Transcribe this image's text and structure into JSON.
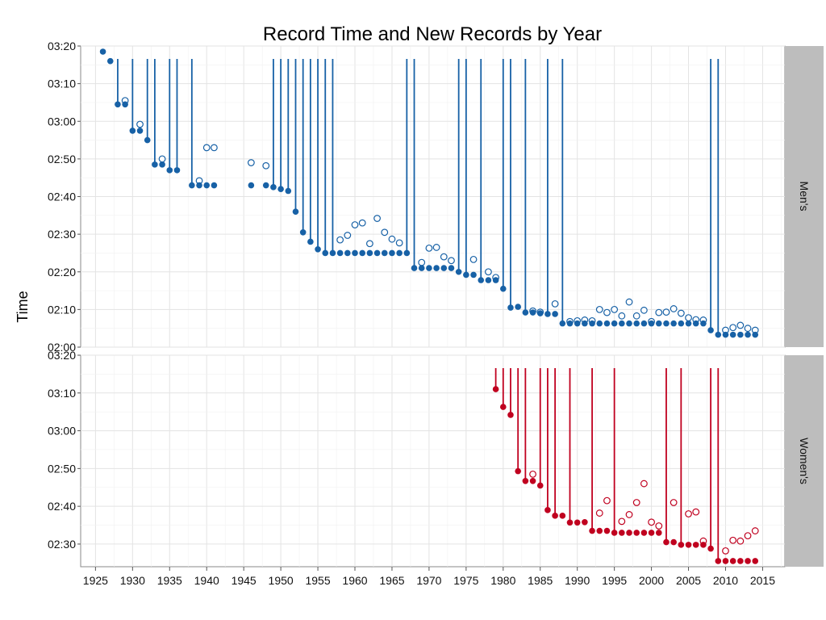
{
  "chart_data": {
    "type": "scatter",
    "title": "Record Time and New Records by Year",
    "xlabel": "",
    "ylabel": "Time",
    "xlim": [
      1923,
      2018
    ],
    "x_ticks": [
      1925,
      1930,
      1935,
      1940,
      1945,
      1950,
      1955,
      1960,
      1965,
      1970,
      1975,
      1980,
      1985,
      1990,
      1995,
      2000,
      2005,
      2010,
      2015
    ],
    "grid": true,
    "legend": "none",
    "facets": [
      {
        "label": "Men's",
        "color": "#1761a6",
        "ylim_minutes": [
          120,
          200
        ],
        "y_ticks": [
          "02:00",
          "02:10",
          "02:20",
          "02:30",
          "02:40",
          "02:50",
          "03:00",
          "03:10",
          "03:20"
        ],
        "record_time": [
          [
            1926,
            198.5
          ],
          [
            1927,
            196.0
          ],
          [
            1928,
            184.5
          ],
          [
            1929,
            184.5
          ],
          [
            1930,
            177.5
          ],
          [
            1931,
            177.5
          ],
          [
            1932,
            175.0
          ],
          [
            1933,
            168.5
          ],
          [
            1934,
            168.5
          ],
          [
            1935,
            167.0
          ],
          [
            1936,
            167.0
          ],
          [
            1938,
            163.0
          ],
          [
            1939,
            163.0
          ],
          [
            1940,
            163.0
          ],
          [
            1941,
            163.0
          ],
          [
            1946,
            163.0
          ],
          [
            1948,
            163.0
          ],
          [
            1949,
            162.5
          ],
          [
            1950,
            162.0
          ],
          [
            1951,
            161.5
          ],
          [
            1952,
            156.0
          ],
          [
            1953,
            150.5
          ],
          [
            1954,
            148.0
          ],
          [
            1955,
            146.0
          ],
          [
            1956,
            145.0
          ],
          [
            1957,
            145.0
          ],
          [
            1958,
            145.0
          ],
          [
            1959,
            145.0
          ],
          [
            1960,
            145.0
          ],
          [
            1961,
            145.0
          ],
          [
            1962,
            145.0
          ],
          [
            1963,
            145.0
          ],
          [
            1964,
            145.0
          ],
          [
            1965,
            145.0
          ],
          [
            1966,
            145.0
          ],
          [
            1967,
            145.0
          ],
          [
            1968,
            141.0
          ],
          [
            1969,
            141.0
          ],
          [
            1970,
            141.0
          ],
          [
            1971,
            141.0
          ],
          [
            1972,
            141.0
          ],
          [
            1973,
            141.0
          ],
          [
            1974,
            140.0
          ],
          [
            1975,
            139.2
          ],
          [
            1976,
            139.2
          ],
          [
            1977,
            137.8
          ],
          [
            1978,
            137.8
          ],
          [
            1979,
            137.8
          ],
          [
            1980,
            135.5
          ],
          [
            1981,
            130.5
          ],
          [
            1982,
            130.7
          ],
          [
            1983,
            129.2
          ],
          [
            1984,
            129.2
          ],
          [
            1985,
            129.0
          ],
          [
            1986,
            128.8
          ],
          [
            1987,
            128.8
          ],
          [
            1988,
            126.3
          ],
          [
            1989,
            126.3
          ],
          [
            1990,
            126.3
          ],
          [
            1991,
            126.3
          ],
          [
            1992,
            126.3
          ],
          [
            1993,
            126.3
          ],
          [
            1994,
            126.3
          ],
          [
            1995,
            126.3
          ],
          [
            1996,
            126.3
          ],
          [
            1997,
            126.3
          ],
          [
            1998,
            126.3
          ],
          [
            1999,
            126.3
          ],
          [
            2000,
            126.3
          ],
          [
            2001,
            126.3
          ],
          [
            2002,
            126.3
          ],
          [
            2003,
            126.3
          ],
          [
            2004,
            126.3
          ],
          [
            2005,
            126.3
          ],
          [
            2006,
            126.3
          ],
          [
            2007,
            126.3
          ],
          [
            2008,
            124.5
          ],
          [
            2009,
            123.3
          ],
          [
            2010,
            123.3
          ],
          [
            2011,
            123.3
          ],
          [
            2012,
            123.3
          ],
          [
            2013,
            123.3
          ],
          [
            2014,
            123.3
          ]
        ],
        "winning_time": [
          [
            1929,
            185.5
          ],
          [
            1931,
            179.2
          ],
          [
            1934,
            170.0
          ],
          [
            1939,
            164.2
          ],
          [
            1940,
            173.0
          ],
          [
            1941,
            173.0
          ],
          [
            1946,
            169.0
          ],
          [
            1948,
            168.2
          ],
          [
            1958,
            148.5
          ],
          [
            1959,
            149.7
          ],
          [
            1960,
            152.5
          ],
          [
            1961,
            153.0
          ],
          [
            1962,
            147.5
          ],
          [
            1963,
            154.2
          ],
          [
            1964,
            150.5
          ],
          [
            1965,
            148.7
          ],
          [
            1966,
            147.7
          ],
          [
            1969,
            142.5
          ],
          [
            1970,
            146.3
          ],
          [
            1971,
            146.5
          ],
          [
            1972,
            144.0
          ],
          [
            1973,
            143.0
          ],
          [
            1976,
            143.3
          ],
          [
            1978,
            140.0
          ],
          [
            1979,
            138.5
          ],
          [
            1984,
            129.6
          ],
          [
            1985,
            129.3
          ],
          [
            1987,
            131.5
          ],
          [
            1989,
            126.8
          ],
          [
            1990,
            127.0
          ],
          [
            1991,
            127.2
          ],
          [
            1992,
            127.0
          ],
          [
            1993,
            130.0
          ],
          [
            1994,
            129.2
          ],
          [
            1995,
            130.0
          ],
          [
            1996,
            128.3
          ],
          [
            1997,
            132.0
          ],
          [
            1998,
            128.3
          ],
          [
            1999,
            129.8
          ],
          [
            2000,
            126.8
          ],
          [
            2001,
            129.2
          ],
          [
            2002,
            129.3
          ],
          [
            2003,
            130.2
          ],
          [
            2004,
            129.0
          ],
          [
            2005,
            127.8
          ],
          [
            2006,
            127.3
          ],
          [
            2007,
            127.2
          ],
          [
            2010,
            124.5
          ],
          [
            2011,
            125.2
          ],
          [
            2012,
            125.8
          ],
          [
            2013,
            125.0
          ],
          [
            2014,
            124.5
          ]
        ],
        "new_record_years": [
          1927,
          1928,
          1930,
          1932,
          1933,
          1935,
          1936,
          1938,
          1949,
          1950,
          1951,
          1952,
          1953,
          1954,
          1955,
          1956,
          1957,
          1967,
          1968,
          1974,
          1975,
          1977,
          1980,
          1981,
          1983,
          1986,
          1988,
          2008,
          2009
        ]
      },
      {
        "label": "Women's",
        "color": "#c0001f",
        "ylim_minutes": [
          144,
          200
        ],
        "y_ticks": [
          "02:30",
          "02:40",
          "02:50",
          "03:00",
          "03:10",
          "03:20"
        ],
        "record_time": [
          [
            1979,
            191.0
          ],
          [
            1980,
            186.3
          ],
          [
            1981,
            184.2
          ],
          [
            1982,
            169.3
          ],
          [
            1983,
            166.7
          ],
          [
            1984,
            166.7
          ],
          [
            1985,
            165.5
          ],
          [
            1986,
            159.0
          ],
          [
            1987,
            157.5
          ],
          [
            1988,
            157.5
          ],
          [
            1989,
            155.7
          ],
          [
            1990,
            155.7
          ],
          [
            1991,
            155.8
          ],
          [
            1992,
            153.5
          ],
          [
            1993,
            153.5
          ],
          [
            1994,
            153.5
          ],
          [
            1995,
            153.0
          ],
          [
            1996,
            153.0
          ],
          [
            1997,
            153.0
          ],
          [
            1998,
            153.0
          ],
          [
            1999,
            153.0
          ],
          [
            2000,
            153.0
          ],
          [
            2001,
            153.0
          ],
          [
            2002,
            150.5
          ],
          [
            2003,
            150.5
          ],
          [
            2004,
            149.8
          ],
          [
            2005,
            149.8
          ],
          [
            2006,
            149.8
          ],
          [
            2007,
            149.8
          ],
          [
            2008,
            148.8
          ],
          [
            2009,
            145.5
          ],
          [
            2010,
            145.5
          ],
          [
            2011,
            145.5
          ],
          [
            2012,
            145.5
          ],
          [
            2013,
            145.5
          ],
          [
            2014,
            145.5
          ]
        ],
        "winning_time": [
          [
            1984,
            168.5
          ],
          [
            1993,
            158.2
          ],
          [
            1994,
            161.5
          ],
          [
            1996,
            156.0
          ],
          [
            1997,
            157.8
          ],
          [
            1998,
            161.0
          ],
          [
            1999,
            166.0
          ],
          [
            2000,
            155.8
          ],
          [
            2001,
            154.8
          ],
          [
            2003,
            161.0
          ],
          [
            2005,
            158.0
          ],
          [
            2006,
            158.5
          ],
          [
            2007,
            150.8
          ],
          [
            2010,
            148.2
          ],
          [
            2011,
            151.0
          ],
          [
            2012,
            150.8
          ],
          [
            2013,
            152.2
          ],
          [
            2014,
            153.5
          ]
        ],
        "new_record_years": [
          1979,
          1980,
          1981,
          1982,
          1983,
          1985,
          1986,
          1987,
          1989,
          1992,
          1995,
          2002,
          2004,
          2008,
          2009
        ]
      }
    ]
  }
}
